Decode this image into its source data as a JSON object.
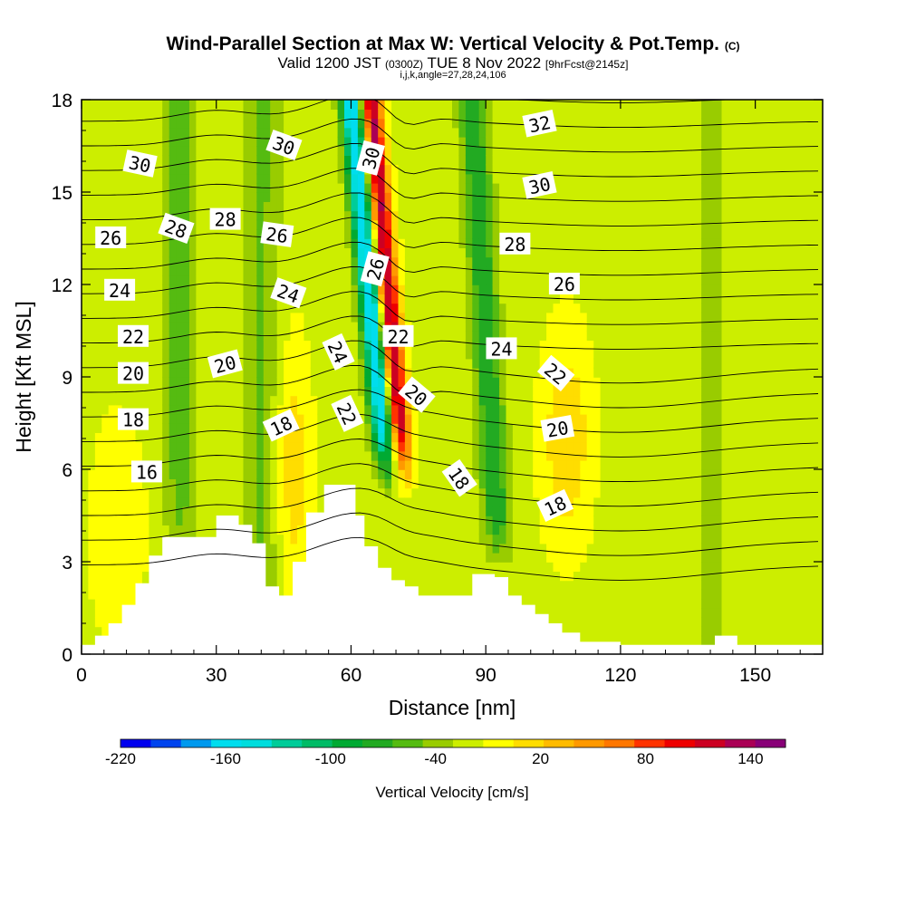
{
  "header": {
    "title": "Wind-Parallel Section at Max W: Vertical Velocity & Pot.Temp.",
    "title_mark": "(C)",
    "valid_prefix": "Valid 1200 JST",
    "valid_utc": "(0300Z)",
    "valid_date": "TUE 8 Nov 2022",
    "forecast": "[9hrFcst@2145z]",
    "section_info": "i,j,k,angle=27,28,24,106"
  },
  "chart_data": {
    "type": "heatmap",
    "xlabel": "Distance [nm]",
    "ylabel": "Height [Kft MSL]",
    "xlim": [
      0,
      165
    ],
    "ylim": [
      0,
      18
    ],
    "x_ticks": [
      0,
      30,
      60,
      90,
      120,
      150
    ],
    "y_ticks": [
      0,
      3,
      6,
      9,
      12,
      15,
      18
    ],
    "colorbar": {
      "label": "Vertical Velocity [cm/s]",
      "min": -220,
      "max": 160,
      "step": 20,
      "tick_values": [
        -220,
        -160,
        -100,
        -40,
        20,
        80,
        140
      ],
      "tick_labels": [
        "-220",
        "-160",
        "-100",
        "-40",
        "20",
        "80",
        "140"
      ],
      "colors": [
        "#0000ee",
        "#0044ee",
        "#0099ee",
        "#00ddee",
        "#00dddd",
        "#00cc99",
        "#00bb66",
        "#00aa33",
        "#22aa22",
        "#55bb11",
        "#99cc00",
        "#ccee00",
        "#ffff00",
        "#ffdd00",
        "#ffbb00",
        "#ff9900",
        "#ff7700",
        "#ff3300",
        "#ee0000",
        "#cc0022",
        "#aa0055",
        "#880077"
      ]
    },
    "contour_labels": [
      {
        "text": "30",
        "x": 13,
        "y": 15.9,
        "angle": 12
      },
      {
        "text": "30",
        "x": 45,
        "y": 16.5,
        "angle": 20
      },
      {
        "text": "30",
        "x": 64.5,
        "y": 16.1,
        "angle": -75
      },
      {
        "text": "32",
        "x": 102,
        "y": 17.2,
        "angle": -12
      },
      {
        "text": "30",
        "x": 102,
        "y": 15.2,
        "angle": -12
      },
      {
        "text": "28",
        "x": 21,
        "y": 13.8,
        "angle": 20
      },
      {
        "text": "28",
        "x": 32,
        "y": 14.1,
        "angle": 0
      },
      {
        "text": "26",
        "x": 6.5,
        "y": 13.5,
        "angle": 0
      },
      {
        "text": "26",
        "x": 43.5,
        "y": 13.6,
        "angle": 8
      },
      {
        "text": "28",
        "x": 96.5,
        "y": 13.3,
        "angle": 0
      },
      {
        "text": "26",
        "x": 65.5,
        "y": 12.5,
        "angle": -75
      },
      {
        "text": "26",
        "x": 107.5,
        "y": 12.0,
        "angle": 0
      },
      {
        "text": "24",
        "x": 8.5,
        "y": 11.8,
        "angle": 0
      },
      {
        "text": "24",
        "x": 46,
        "y": 11.7,
        "angle": 20
      },
      {
        "text": "22",
        "x": 11.5,
        "y": 10.3,
        "angle": 0
      },
      {
        "text": "22",
        "x": 70.5,
        "y": 10.3,
        "angle": 0
      },
      {
        "text": "24",
        "x": 57,
        "y": 9.8,
        "angle": 65
      },
      {
        "text": "24",
        "x": 93.5,
        "y": 9.9,
        "angle": 0
      },
      {
        "text": "20",
        "x": 11.5,
        "y": 9.1,
        "angle": 0
      },
      {
        "text": "20",
        "x": 32,
        "y": 9.4,
        "angle": -15
      },
      {
        "text": "22",
        "x": 105.5,
        "y": 9.1,
        "angle": 40
      },
      {
        "text": "20",
        "x": 74.5,
        "y": 8.4,
        "angle": 40
      },
      {
        "text": "22",
        "x": 59,
        "y": 7.8,
        "angle": 65
      },
      {
        "text": "18",
        "x": 11.5,
        "y": 7.6,
        "angle": 0
      },
      {
        "text": "18",
        "x": 44.5,
        "y": 7.4,
        "angle": -25
      },
      {
        "text": "20",
        "x": 106,
        "y": 7.3,
        "angle": -10
      },
      {
        "text": "16",
        "x": 14.5,
        "y": 5.9,
        "angle": 0
      },
      {
        "text": "18",
        "x": 84,
        "y": 5.7,
        "angle": 55
      },
      {
        "text": "18",
        "x": 105.5,
        "y": 4.8,
        "angle": -25
      }
    ]
  }
}
